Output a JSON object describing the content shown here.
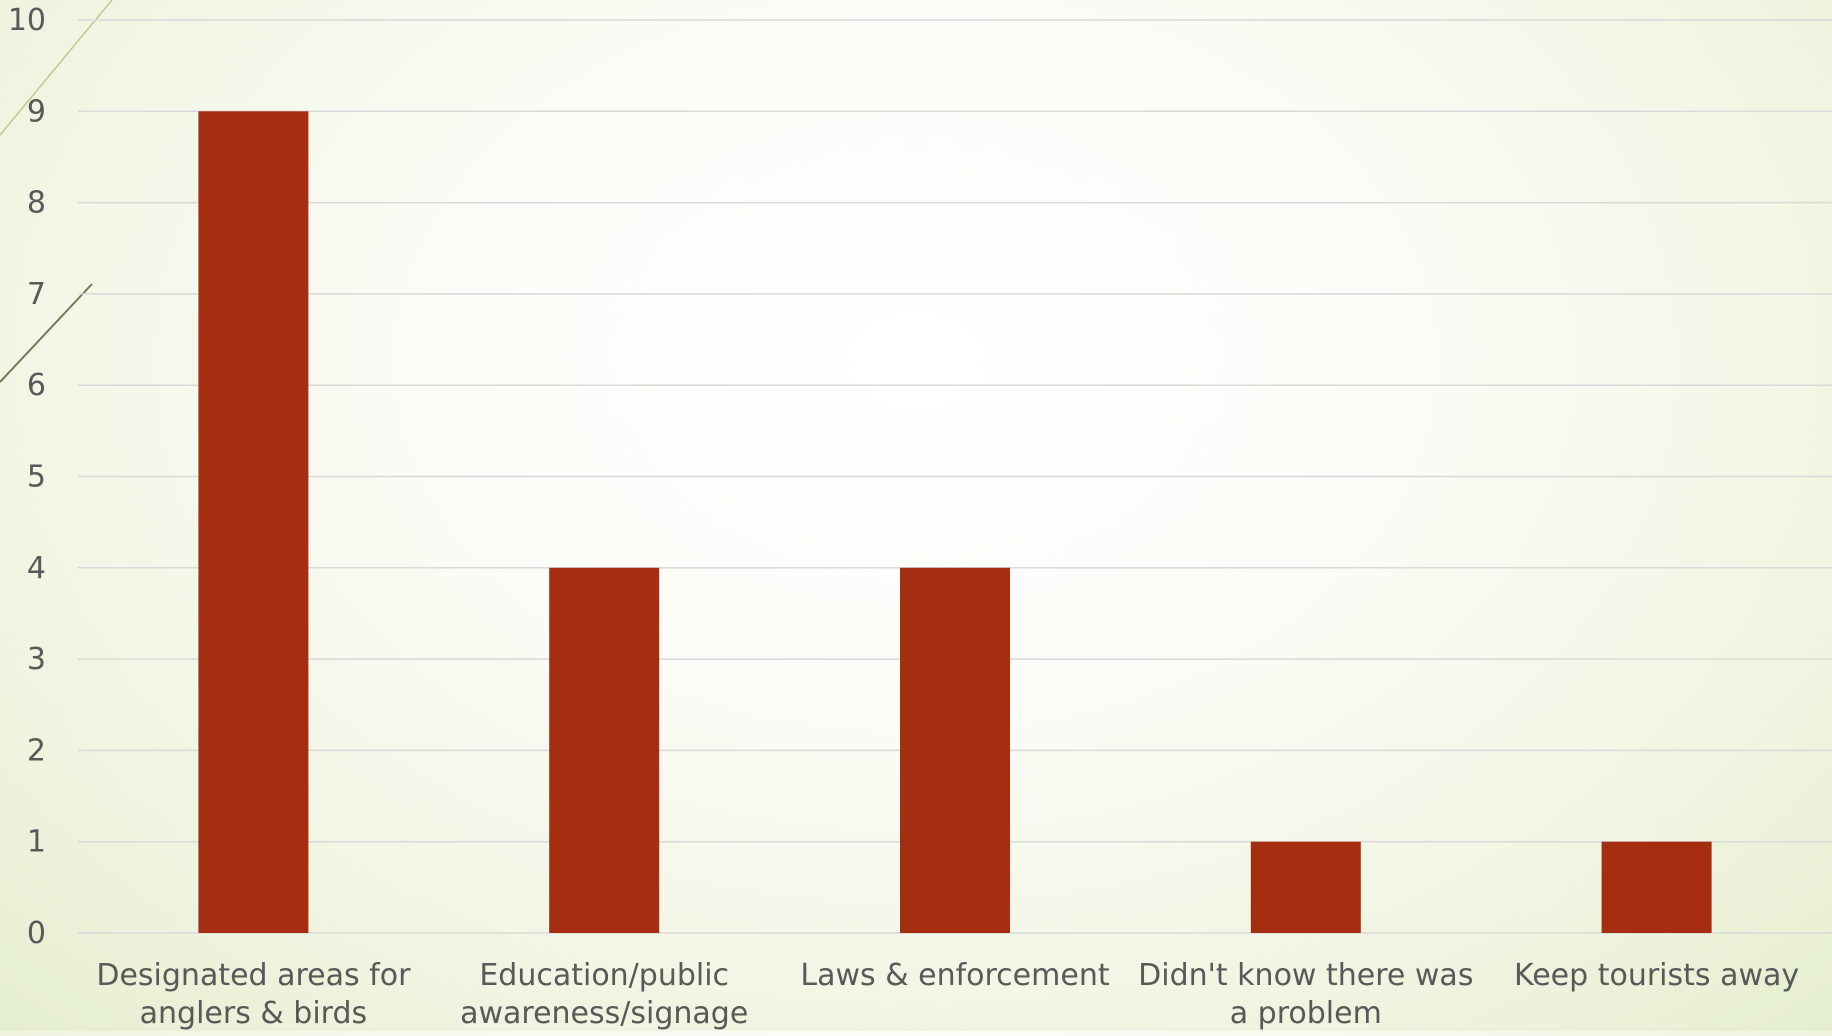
{
  "colors": {
    "bar": "#a52d10",
    "grid": "#d9d9d9",
    "axis_text": "#595959",
    "deco_line": "#8aa042"
  },
  "chart_data": {
    "type": "bar",
    "title": "",
    "xlabel": "",
    "ylabel": "",
    "categories": [
      [
        "Designated areas for",
        "anglers & birds"
      ],
      [
        "Education/public",
        "awareness/signage"
      ],
      [
        "Laws & enforcement"
      ],
      [
        "Didn't know there was",
        "a problem"
      ],
      [
        "Keep tourists away"
      ]
    ],
    "values": [
      9,
      4,
      4,
      1,
      1
    ],
    "ylim": [
      0,
      10
    ],
    "yticks": [
      0,
      1,
      2,
      3,
      4,
      5,
      6,
      7,
      8,
      9,
      10
    ],
    "grid": true,
    "legend": "none"
  }
}
